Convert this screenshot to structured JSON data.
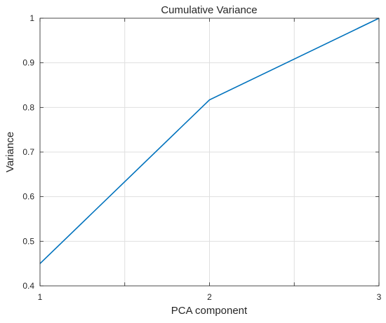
{
  "chart_data": {
    "type": "line",
    "title": "Cumulative Variance",
    "xlabel": "PCA component",
    "ylabel": "Variance",
    "x": [
      1,
      2,
      3
    ],
    "series": [
      {
        "values": [
          0.45,
          0.817,
          1.0
        ]
      }
    ],
    "xlim": [
      1,
      3
    ],
    "ylim": [
      0.4,
      1.0
    ],
    "xticks": [
      1,
      1.5,
      2,
      2.5,
      3
    ],
    "xtick_labels": [
      "1",
      "",
      "2",
      "",
      "3"
    ],
    "yticks": [
      0.4,
      0.5,
      0.6,
      0.7,
      0.8,
      0.9,
      1.0
    ],
    "ytick_labels": [
      "0.4",
      "0.5",
      "0.6",
      "0.7",
      "0.8",
      "0.9",
      "1"
    ],
    "grid": true,
    "legend": "none",
    "colors": {
      "line": "#0072bd",
      "grid": "#dfdfdf",
      "axis": "#262626"
    }
  }
}
